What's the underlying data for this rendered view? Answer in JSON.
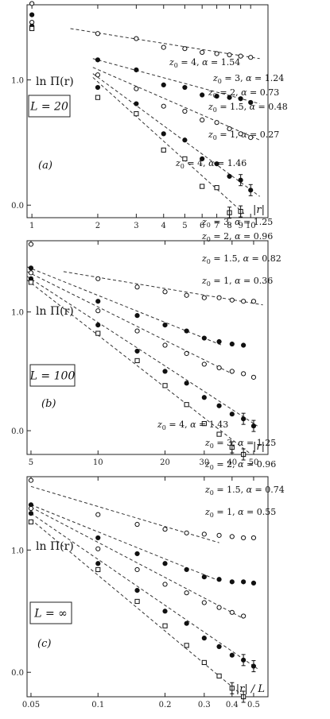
{
  "chart_data": [
    {
      "type": "scatter",
      "panel_label": "(a)",
      "box_label": "L = 20",
      "ylabel": "ln Π(r)",
      "xlabel": "|r|",
      "x_scale": "log",
      "xlim": [
        0.95,
        12
      ],
      "ylim": [
        -0.1,
        1.6
      ],
      "xticks": [
        1,
        2,
        3,
        4,
        5,
        6,
        7,
        8,
        9,
        10
      ],
      "yticks": [
        0.0,
        1.0
      ],
      "ytick_labels": [
        "0.0",
        "1.0"
      ],
      "series": [
        {
          "z0": "1",
          "alpha": "0.27",
          "marker": "open-circle",
          "x": [
            1,
            2,
            3,
            4,
            5,
            6,
            7,
            8,
            9,
            10
          ],
          "y": [
            1.61,
            1.37,
            1.33,
            1.26,
            1.25,
            1.22,
            1.21,
            1.2,
            1.19,
            1.18
          ],
          "fit": {
            "x": [
              1.5,
              11
            ],
            "y": [
              1.41,
              1.17
            ]
          }
        },
        {
          "z0": "1.5",
          "alpha": "0.48",
          "marker": "filled-circle",
          "x": [
            1,
            2,
            3,
            4,
            5,
            6,
            7,
            8,
            9,
            10
          ],
          "y": [
            1.52,
            1.16,
            1.08,
            0.96,
            0.94,
            0.88,
            0.87,
            0.86,
            0.85,
            0.82
          ],
          "fit": {
            "x": [
              1.9,
              11
            ],
            "y": [
              1.17,
              0.81
            ]
          }
        },
        {
          "z0": "2",
          "alpha": "0.73",
          "marker": "open-circle",
          "x": [
            1,
            2,
            3,
            4,
            5,
            6,
            7,
            8,
            9,
            10
          ],
          "y": [
            1.46,
            1.04,
            0.93,
            0.79,
            0.75,
            0.68,
            0.66,
            0.61,
            0.57,
            0.54
          ],
          "fit": {
            "x": [
              1.9,
              11
            ],
            "y": [
              1.1,
              0.52
            ]
          }
        },
        {
          "z0": "3",
          "alpha": "1.24",
          "marker": "filled-circle",
          "x": [
            1,
            2,
            3,
            4,
            5,
            6,
            7,
            8,
            9,
            10
          ],
          "y": [
            1.43,
            0.94,
            0.81,
            0.57,
            0.52,
            0.37,
            0.33,
            0.23,
            0.2,
            0.12
          ],
          "fit": {
            "x": [
              1.9,
              11
            ],
            "y": [
              1.05,
              0.07
            ]
          }
        },
        {
          "z0": "4",
          "alpha": "1.54",
          "marker": "open-square",
          "x": [
            1,
            2,
            3,
            4,
            5,
            6,
            7,
            8,
            9
          ],
          "y": [
            1.41,
            0.86,
            0.73,
            0.44,
            0.37,
            0.15,
            0.14,
            -0.06,
            -0.05
          ],
          "fit": {
            "x": [
              1.9,
              9.5
            ],
            "y": [
              1.02,
              -0.08
            ]
          }
        }
      ]
    },
    {
      "type": "scatter",
      "panel_label": "(b)",
      "box_label": "L = 100",
      "ylabel": "ln Π(r)",
      "xlabel": "|r|",
      "x_scale": "log",
      "xlim": [
        4.8,
        58
      ],
      "ylim": [
        -0.2,
        1.6
      ],
      "xticks": [
        5,
        10,
        20,
        30,
        40,
        50
      ],
      "yticks": [
        0.0,
        1.0
      ],
      "ytick_labels": [
        "0.0",
        "1.0"
      ],
      "series": [
        {
          "z0": "1",
          "alpha": "0.36",
          "marker": "open-circle",
          "x": [
            5,
            10,
            15,
            20,
            25,
            30,
            35,
            40,
            45,
            50
          ],
          "y": [
            1.57,
            1.28,
            1.21,
            1.17,
            1.14,
            1.12,
            1.12,
            1.1,
            1.09,
            1.09
          ],
          "fit": {
            "x": [
              7,
              55
            ],
            "y": [
              1.34,
              1.06
            ]
          }
        },
        {
          "z0": "1.5",
          "alpha": "0.82",
          "marker": "filled-circle",
          "x": [
            5,
            10,
            15,
            20,
            25,
            30,
            35,
            40,
            45
          ],
          "y": [
            1.37,
            1.09,
            0.97,
            0.89,
            0.84,
            0.78,
            0.75,
            0.73,
            0.72
          ],
          "fit": {
            "x": [
              4.8,
              36
            ],
            "y": [
              1.38,
              0.72
            ]
          }
        },
        {
          "z0": "2",
          "alpha": "0.96",
          "marker": "open-circle",
          "x": [
            5,
            10,
            15,
            20,
            25,
            30,
            35,
            40,
            45,
            50
          ],
          "y": [
            1.33,
            1.01,
            0.84,
            0.72,
            0.65,
            0.56,
            0.53,
            0.5,
            0.48,
            0.45
          ],
          "fit": {
            "x": [
              4.8,
              40
            ],
            "y": [
              1.34,
              0.48
            ]
          }
        },
        {
          "z0": "3",
          "alpha": "1.25",
          "marker": "filled-circle",
          "x": [
            5,
            10,
            15,
            20,
            25,
            30,
            35,
            40,
            45,
            50
          ],
          "y": [
            1.28,
            0.89,
            0.67,
            0.5,
            0.4,
            0.28,
            0.21,
            0.14,
            0.1,
            0.04
          ],
          "fit": {
            "x": [
              4.8,
              52
            ],
            "y": [
              1.3,
              0.04
            ]
          }
        },
        {
          "z0": "4",
          "alpha": "1.46",
          "marker": "open-square",
          "x": [
            5,
            10,
            15,
            20,
            25,
            30,
            35,
            40,
            45
          ],
          "y": [
            1.25,
            0.82,
            0.59,
            0.38,
            0.22,
            0.06,
            -0.03,
            -0.14,
            -0.2
          ],
          "fit": {
            "x": [
              4.8,
              48
            ],
            "y": [
              1.27,
              -0.19
            ]
          }
        }
      ]
    },
    {
      "type": "scatter",
      "panel_label": "(c)",
      "box_label": "L = ∞",
      "ylabel": "ln Π(r)",
      "xlabel": "|r| / L",
      "x_scale": "log",
      "xlim": [
        0.048,
        0.58
      ],
      "ylim": [
        -0.2,
        1.6
      ],
      "xticks": [
        0.05,
        0.1,
        0.2,
        0.3,
        0.4,
        0.5
      ],
      "yticks": [
        0.0,
        1.0
      ],
      "ytick_labels": [
        "0.0",
        "1.0"
      ],
      "series": [
        {
          "z0": "1",
          "alpha": "0.55",
          "marker": "open-circle",
          "x": [
            0.05,
            0.1,
            0.15,
            0.2,
            0.25,
            0.3,
            0.35,
            0.4,
            0.45,
            0.5
          ],
          "y": [
            1.57,
            1.29,
            1.21,
            1.17,
            1.14,
            1.13,
            1.12,
            1.11,
            1.1,
            1.1
          ],
          "fit": {
            "x": [
              0.05,
              0.35
            ],
            "y": [
              1.52,
              1.06
            ]
          }
        },
        {
          "z0": "1.5",
          "alpha": "0.74",
          "marker": "filled-circle",
          "x": [
            0.05,
            0.1,
            0.15,
            0.2,
            0.25,
            0.3,
            0.35,
            0.4,
            0.45,
            0.5
          ],
          "y": [
            1.37,
            1.1,
            0.97,
            0.89,
            0.84,
            0.78,
            0.76,
            0.74,
            0.74,
            0.73
          ],
          "fit": {
            "x": [
              0.05,
              0.36
            ],
            "y": [
              1.37,
              0.74
            ]
          }
        },
        {
          "z0": "2",
          "alpha": "0.96",
          "marker": "open-circle",
          "x": [
            0.05,
            0.1,
            0.15,
            0.2,
            0.25,
            0.3,
            0.35,
            0.4,
            0.45
          ],
          "y": [
            1.34,
            1.01,
            0.84,
            0.72,
            0.65,
            0.57,
            0.53,
            0.49,
            0.46
          ],
          "fit": {
            "x": [
              0.05,
              0.45
            ],
            "y": [
              1.35,
              0.44
            ]
          }
        },
        {
          "z0": "3",
          "alpha": "1.25",
          "marker": "filled-circle",
          "x": [
            0.05,
            0.1,
            0.15,
            0.2,
            0.25,
            0.3,
            0.35,
            0.4,
            0.45,
            0.5
          ],
          "y": [
            1.3,
            0.89,
            0.67,
            0.5,
            0.4,
            0.28,
            0.21,
            0.14,
            0.1,
            0.05
          ],
          "fit": {
            "x": [
              0.05,
              0.52
            ],
            "y": [
              1.3,
              0.03
            ]
          }
        },
        {
          "z0": "4",
          "alpha": "1.43",
          "marker": "open-square",
          "x": [
            0.05,
            0.1,
            0.15,
            0.2,
            0.25,
            0.3,
            0.35,
            0.4,
            0.45
          ],
          "y": [
            1.23,
            0.84,
            0.58,
            0.38,
            0.22,
            0.08,
            -0.03,
            -0.13,
            -0.2
          ],
          "fit": {
            "x": [
              0.05,
              0.46
            ],
            "y": [
              1.25,
              -0.21
            ]
          }
        }
      ]
    }
  ]
}
